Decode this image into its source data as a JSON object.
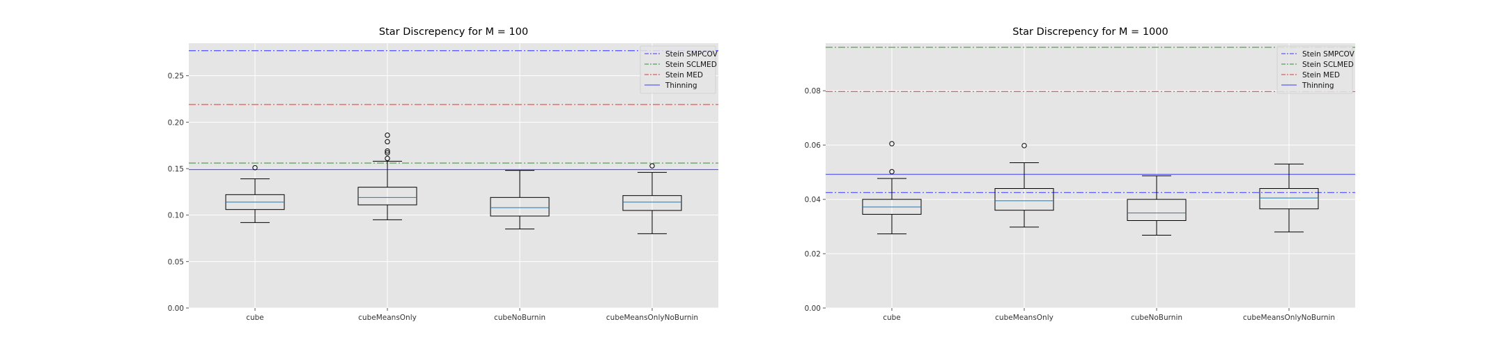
{
  "chart_data": [
    {
      "type": "boxplot",
      "title": "Star Discrepency for M = 100",
      "xlabel": "",
      "ylabel": "",
      "categories": [
        "cube",
        "cubeMeansOnly",
        "cubeNoBurnin",
        "cubeMeansOnlyNoBurnin"
      ],
      "ylim": [
        0,
        0.285
      ],
      "yticks": [
        0.0,
        0.05,
        0.1,
        0.15,
        0.2,
        0.25
      ],
      "ytick_labels": [
        "0.00",
        "0.05",
        "0.10",
        "0.15",
        "0.20",
        "0.25"
      ],
      "grid": true,
      "legend_position": "top-right",
      "boxes": [
        {
          "category": "cube",
          "whislo": 0.092,
          "q1": 0.106,
          "med": 0.114,
          "q3": 0.122,
          "whishi": 0.139,
          "fliers": [
            0.151
          ]
        },
        {
          "category": "cubeMeansOnly",
          "whislo": 0.095,
          "q1": 0.111,
          "med": 0.119,
          "q3": 0.13,
          "whishi": 0.158,
          "fliers": [
            0.161,
            0.167,
            0.169,
            0.179,
            0.186
          ]
        },
        {
          "category": "cubeNoBurnin",
          "whislo": 0.085,
          "q1": 0.099,
          "med": 0.108,
          "q3": 0.119,
          "whishi": 0.148,
          "fliers": []
        },
        {
          "category": "cubeMeansOnlyNoBurnin",
          "whislo": 0.08,
          "q1": 0.105,
          "med": 0.114,
          "q3": 0.121,
          "whishi": 0.146,
          "fliers": [
            0.153
          ]
        }
      ],
      "reference_lines": [
        {
          "name": "Stein SMPCOV",
          "value": 0.277,
          "color": "#5b5bff",
          "style": "dashdot"
        },
        {
          "name": "Stein SCLMED",
          "value": 0.156,
          "color": "#55a055",
          "style": "dashdot"
        },
        {
          "name": "Stein MED",
          "value": 0.219,
          "color": "#e15a5a",
          "style": "dashdot"
        },
        {
          "name": "Thinning",
          "value": 0.149,
          "color": "#5b5bff",
          "style": "solid"
        }
      ]
    },
    {
      "type": "boxplot",
      "title": "Star Discrepency for M = 1000",
      "xlabel": "",
      "ylabel": "",
      "categories": [
        "cube",
        "cubeMeansOnly",
        "cubeNoBurnin",
        "cubeMeansOnlyNoBurnin"
      ],
      "ylim": [
        0,
        0.0975
      ],
      "yticks": [
        0.0,
        0.02,
        0.04,
        0.06,
        0.08
      ],
      "ytick_labels": [
        "0.00",
        "0.02",
        "0.04",
        "0.06",
        "0.08"
      ],
      "grid": true,
      "legend_position": "top-right",
      "boxes": [
        {
          "category": "cube",
          "whislo": 0.0273,
          "q1": 0.0345,
          "med": 0.0372,
          "q3": 0.04,
          "whishi": 0.0477,
          "fliers": [
            0.0502,
            0.0605
          ]
        },
        {
          "category": "cubeMeansOnly",
          "whislo": 0.0298,
          "q1": 0.036,
          "med": 0.0395,
          "q3": 0.044,
          "whishi": 0.0535,
          "fliers": [
            0.0598
          ]
        },
        {
          "category": "cubeNoBurnin",
          "whislo": 0.0268,
          "q1": 0.0322,
          "med": 0.035,
          "q3": 0.04,
          "whishi": 0.0487,
          "fliers": []
        },
        {
          "category": "cubeMeansOnlyNoBurnin",
          "whislo": 0.028,
          "q1": 0.0365,
          "med": 0.0405,
          "q3": 0.044,
          "whishi": 0.053,
          "fliers": []
        }
      ],
      "reference_lines": [
        {
          "name": "Stein SMPCOV",
          "value": 0.0425,
          "color": "#5b5bff",
          "style": "dashdot"
        },
        {
          "name": "Stein SCLMED",
          "value": 0.096,
          "color": "#55a055",
          "style": "dashdot"
        },
        {
          "name": "Stein MED",
          "value": 0.0797,
          "color": "#e15a5a",
          "style": "dashdot"
        },
        {
          "name": "Thinning",
          "value": 0.0492,
          "color": "#5b5bff",
          "style": "solid"
        }
      ]
    }
  ],
  "colors": {
    "plot_background": "#e5e5e5",
    "grid": "#ffffff",
    "box_edge": "#000000",
    "median": "#1f77b4",
    "text": "#333333",
    "title": "#000000"
  }
}
